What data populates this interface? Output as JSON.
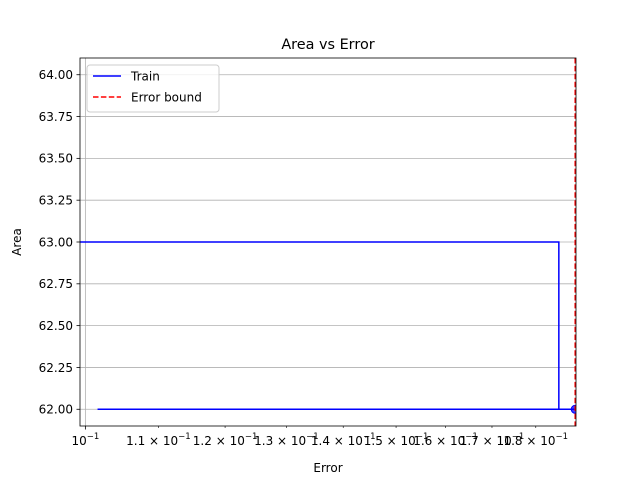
{
  "chart_data": {
    "type": "line",
    "title": "Area vs Error",
    "xlabel": "Error",
    "ylabel": "Area",
    "xscale": "log",
    "xlim": [
      0.0993,
      0.1897
    ],
    "ylim": [
      61.9,
      64.1
    ],
    "grid": true,
    "legend_position": "top-left",
    "x_ticks": [
      {
        "value": 0.1,
        "mantissa": "10",
        "exponent": "−1"
      },
      {
        "value": 0.11,
        "mantissa": "1.1 × 10",
        "exponent": "−1"
      },
      {
        "value": 0.12,
        "mantissa": "1.2 × 10",
        "exponent": "−1"
      },
      {
        "value": 0.13,
        "mantissa": "1.3 × 10",
        "exponent": "−1"
      },
      {
        "value": 0.14,
        "mantissa": "1.4 × 10",
        "exponent": "−1"
      },
      {
        "value": 0.15,
        "mantissa": "1.5 × 10",
        "exponent": "−1"
      },
      {
        "value": 0.16,
        "mantissa": "1.6 × 10",
        "exponent": "−1"
      },
      {
        "value": 0.17,
        "mantissa": "1.7 × 10",
        "exponent": "−1"
      },
      {
        "value": 0.18,
        "mantissa": "1.8 × 10",
        "exponent": "−1"
      }
    ],
    "y_ticks": [
      {
        "value": 62.0,
        "label": "62.00"
      },
      {
        "value": 62.25,
        "label": "62.25"
      },
      {
        "value": 62.5,
        "label": "62.50"
      },
      {
        "value": 62.75,
        "label": "62.75"
      },
      {
        "value": 63.0,
        "label": "63.00"
      },
      {
        "value": 63.25,
        "label": "63.25"
      },
      {
        "value": 63.5,
        "label": "63.50"
      },
      {
        "value": 63.75,
        "label": "63.75"
      },
      {
        "value": 64.0,
        "label": "64.00"
      }
    ],
    "series": [
      {
        "name": "Train",
        "color": "#0000ff",
        "style": "solid",
        "points": [
          [
            0.0993,
            63.0
          ],
          [
            0.1855,
            63.0
          ],
          [
            0.1855,
            62.0
          ],
          [
            0.1016,
            62.0
          ],
          [
            0.1895,
            62.0
          ]
        ],
        "marker_point": [
          0.1895,
          62.0
        ]
      },
      {
        "name": "Error bound",
        "color": "#ff0000",
        "style": "dashed",
        "vertical_line_x": 0.1895
      }
    ]
  }
}
